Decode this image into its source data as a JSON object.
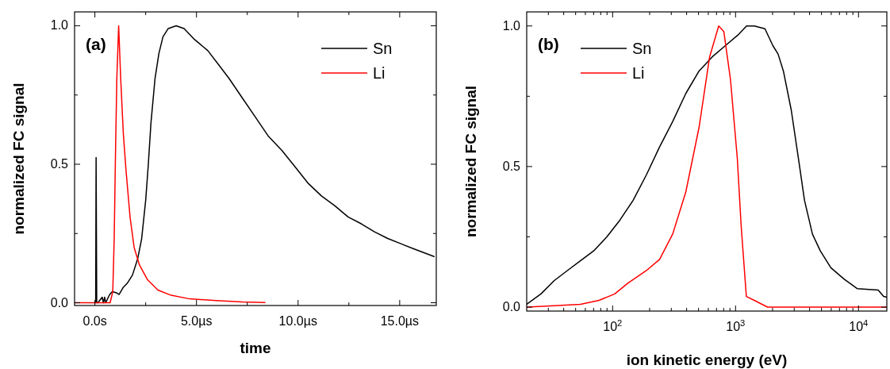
{
  "chart_data": [
    {
      "type": "line",
      "xlabel": "time",
      "ylabel": "normalized FC signal",
      "annotations": [
        "(a)"
      ],
      "legend": "top right",
      "xlim": [
        -1,
        16.8
      ],
      "ylim": [
        -0.01,
        1.05
      ],
      "xticks": [
        {
          "value": 0,
          "label": "0.0s"
        },
        {
          "value": 2.5,
          "label": null
        },
        {
          "value": 5,
          "label": "5.0µs"
        },
        {
          "value": 7.5,
          "label": null
        },
        {
          "value": 10,
          "label": "10.0µs"
        },
        {
          "value": 12.5,
          "label": null
        },
        {
          "value": 15,
          "label": "15.0µs"
        }
      ],
      "yticks": [
        {
          "value": 0,
          "label": "0.0"
        },
        {
          "value": 0.25,
          "label": null
        },
        {
          "value": 0.5,
          "label": "0.5"
        },
        {
          "value": 0.75,
          "label": null
        },
        {
          "value": 1,
          "label": "1.0"
        }
      ],
      "series": [
        {
          "name": "Sn",
          "color": "#000000",
          "x": [
            -0.03,
            0.04,
            0.06,
            0.09,
            0.15,
            0.36,
            0.42,
            0.48,
            0.53,
            0.73,
            0.86,
            1.06,
            1.19,
            1.39,
            1.59,
            1.85,
            2.11,
            2.3,
            2.5,
            2.63,
            2.76,
            2.96,
            3.15,
            3.35,
            3.61,
            4.0,
            4.39,
            4.91,
            5.56,
            6.08,
            6.6,
            7.25,
            7.9,
            8.55,
            9.2,
            9.86,
            10.51,
            11.16,
            11.81,
            12.46,
            13.11,
            13.76,
            14.41,
            15.06,
            15.71,
            16.69
          ],
          "values": [
            0,
            0,
            0.524,
            0,
            0,
            0.02,
            0,
            0.02,
            0,
            0.03,
            0.04,
            0.036,
            0.03,
            0.055,
            0.07,
            0.1,
            0.16,
            0.23,
            0.37,
            0.5,
            0.65,
            0.81,
            0.9,
            0.96,
            0.99,
            1.0,
            0.99,
            0.95,
            0.91,
            0.86,
            0.81,
            0.74,
            0.67,
            0.6,
            0.55,
            0.49,
            0.43,
            0.385,
            0.35,
            0.31,
            0.285,
            0.256,
            0.232,
            0.213,
            0.194,
            0.167
          ]
        },
        {
          "name": "Li",
          "color": "#ff0000",
          "x": [
            -1.0,
            -0.42,
            0.1,
            0.75,
            0.88,
            0.95,
            1.01,
            1.08,
            1.17,
            1.27,
            1.4,
            1.53,
            1.73,
            1.93,
            2.19,
            2.58,
            3.1,
            3.75,
            4.66,
            5.96,
            7.26,
            8.37
          ],
          "values": [
            0,
            0,
            0,
            0,
            0.04,
            0.23,
            0.52,
            0.81,
            1.0,
            0.81,
            0.61,
            0.48,
            0.31,
            0.2,
            0.137,
            0.084,
            0.046,
            0.027,
            0.014,
            0.008,
            0.003,
            0.001
          ]
        }
      ]
    },
    {
      "type": "line",
      "xlabel": "ion kinetic energy (eV)",
      "ylabel": "normalized FC signal",
      "annotations": [
        "(b)"
      ],
      "legend": "top left",
      "log": "x",
      "xlim": [
        20,
        17000
      ],
      "ylim": [
        -0.014,
        1.05
      ],
      "xticks": [
        {
          "value": 30,
          "label": null
        },
        {
          "value": 40,
          "label": null
        },
        {
          "value": 50,
          "label": null
        },
        {
          "value": 60,
          "label": null
        },
        {
          "value": 70,
          "label": null
        },
        {
          "value": 80,
          "label": null
        },
        {
          "value": 90,
          "label": null
        },
        {
          "value": 100,
          "label": "10$^{2}$"
        },
        {
          "value": 200,
          "label": null
        },
        {
          "value": 300,
          "label": null
        },
        {
          "value": 400,
          "label": null
        },
        {
          "value": 500,
          "label": null
        },
        {
          "value": 600,
          "label": null
        },
        {
          "value": 700,
          "label": null
        },
        {
          "value": 800,
          "label": null
        },
        {
          "value": 900,
          "label": null
        },
        {
          "value": 1000,
          "label": "10$^{3}$"
        },
        {
          "value": 2000,
          "label": null
        },
        {
          "value": 3000,
          "label": null
        },
        {
          "value": 4000,
          "label": null
        },
        {
          "value": 5000,
          "label": null
        },
        {
          "value": 6000,
          "label": null
        },
        {
          "value": 7000,
          "label": null
        },
        {
          "value": 8000,
          "label": null
        },
        {
          "value": 9000,
          "label": null
        },
        {
          "value": 10000,
          "label": "10$^{4}$"
        }
      ],
      "yticks": [
        {
          "value": 0,
          "label": "0.0"
        },
        {
          "value": 0.25,
          "label": null
        },
        {
          "value": 0.5,
          "label": "0.5"
        },
        {
          "value": 0.75,
          "label": null
        },
        {
          "value": 1,
          "label": "1.0"
        }
      ],
      "series": [
        {
          "name": "Sn",
          "color": "#000000",
          "x": [
            20,
            26.1,
            33.4,
            42.8,
            54.7,
            70.1,
            89.7,
            114.8,
            146.9,
            188,
            241,
            308,
            394,
            505,
            646,
            826,
            1059,
            1228,
            1423,
            1734,
            2011,
            2218,
            2449,
            2840,
            3294,
            3636,
            4218,
            4890,
            5960,
            7620,
            9750,
            14450,
            16000,
            17000
          ],
          "values": [
            0.01,
            0.047,
            0.094,
            0.13,
            0.165,
            0.2,
            0.25,
            0.31,
            0.38,
            0.47,
            0.57,
            0.66,
            0.76,
            0.84,
            0.89,
            0.93,
            0.97,
            1.0,
            1.0,
            0.99,
            0.93,
            0.9,
            0.84,
            0.7,
            0.51,
            0.38,
            0.26,
            0.2,
            0.14,
            0.1,
            0.066,
            0.061,
            0.038,
            0.035
          ]
        },
        {
          "name": "Li",
          "color": "#ff0000",
          "x": [
            20,
            33.4,
            54.7,
            77.4,
            104,
            133,
            188,
            241,
            308,
            394,
            505,
            615,
            729,
            803,
            909,
            1033,
            1110,
            1224,
            1420,
            1820,
            3636,
            9750,
            17000
          ],
          "values": [
            0,
            0.005,
            0.01,
            0.024,
            0.047,
            0.085,
            0.13,
            0.17,
            0.26,
            0.41,
            0.64,
            0.89,
            1.0,
            0.98,
            0.81,
            0.53,
            0.29,
            0.038,
            0.024,
            0,
            0,
            0,
            0
          ]
        }
      ]
    }
  ]
}
